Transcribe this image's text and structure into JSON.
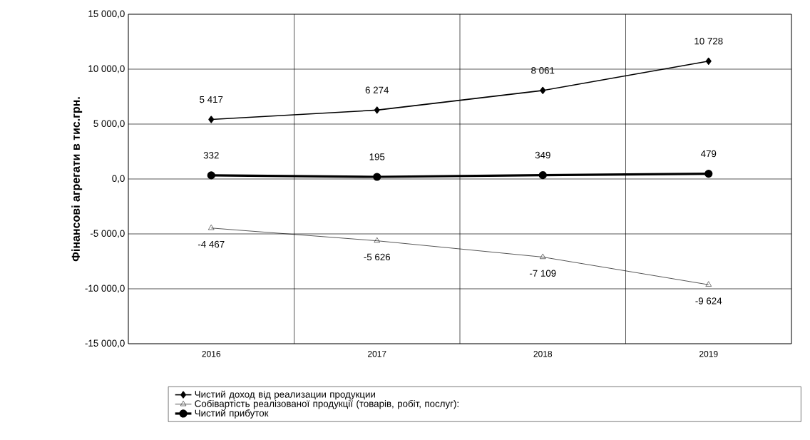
{
  "chart_data": {
    "type": "line",
    "ylabel": "Фінансові агрегати в тис.грн.",
    "categories": [
      "2016",
      "2017",
      "2018",
      "2019"
    ],
    "series": [
      {
        "name": "Чистий доход  від реализации продукции",
        "color": "#000000",
        "marker": "diamond",
        "values": [
          5417,
          6274,
          8061,
          10728
        ],
        "value_labels": [
          "5 417",
          "6 274",
          "8 061",
          "10 728"
        ]
      },
      {
        "name": "Собівартість реалізованої продукції (товарів, робіт, послуг):",
        "color": "#000000",
        "marker": "triangle",
        "values": [
          -4467,
          -5626,
          -7109,
          -9624
        ],
        "value_labels": [
          "-4 467",
          "-5 626",
          "-7 109",
          "-9 624"
        ]
      },
      {
        "name": "Чистий прибуток",
        "color": "#000000",
        "marker": "circle",
        "values": [
          332,
          195,
          349,
          479
        ],
        "value_labels": [
          "332",
          "195",
          "349",
          "479"
        ]
      }
    ],
    "ylim": [
      -15000,
      15000
    ],
    "yticks": [
      {
        "value": -15000,
        "label": "-15 000,0"
      },
      {
        "value": -10000,
        "label": "-10 000,0"
      },
      {
        "value": -5000,
        "label": "-5 000,0"
      },
      {
        "value": 0,
        "label": "0,0"
      },
      {
        "value": 5000,
        "label": "5 000,0"
      },
      {
        "value": 10000,
        "label": "10 000,0"
      },
      {
        "value": 15000,
        "label": "15 000,0"
      }
    ],
    "grid": true,
    "legend": "bottom"
  }
}
